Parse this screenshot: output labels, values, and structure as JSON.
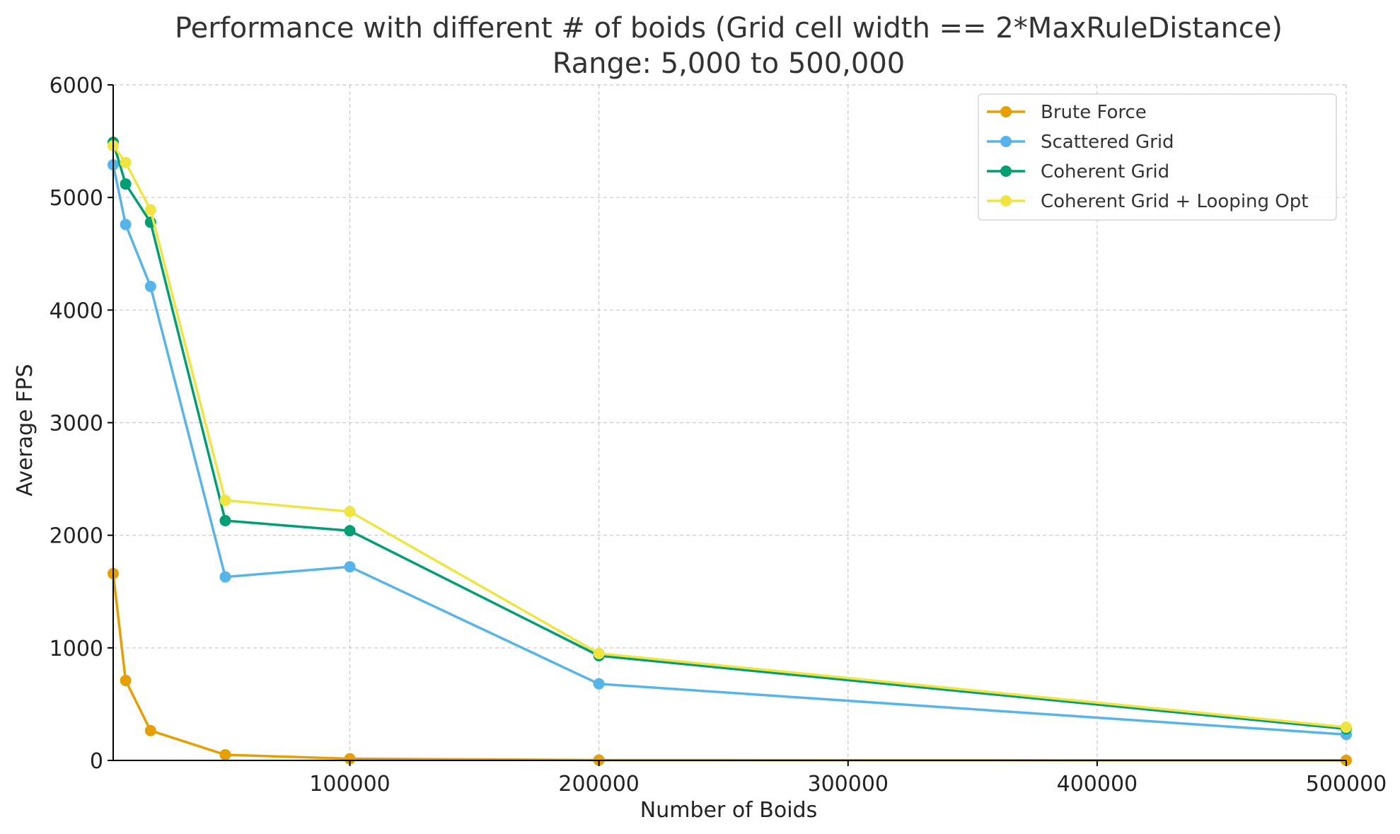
{
  "chart_data": {
    "type": "line",
    "title": "Performance with different # of boids (Grid cell width == 2*MaxRuleDistance)",
    "subtitle": "Range: 5,000 to 500,000",
    "xlabel": "Number of Boids",
    "ylabel": "Average FPS",
    "xlim": [
      5000,
      500000
    ],
    "ylim": [
      0,
      6000
    ],
    "xticks": [
      100000,
      200000,
      300000,
      400000,
      500000
    ],
    "xtick_labels": [
      "100000",
      "200000",
      "300000",
      "400000",
      "500000"
    ],
    "yticks": [
      0,
      1000,
      2000,
      3000,
      4000,
      5000,
      6000
    ],
    "ytick_labels": [
      "0",
      "1000",
      "2000",
      "3000",
      "4000",
      "5000",
      "6000"
    ],
    "grid": true,
    "legend_position": "top-right",
    "x": [
      5000,
      10000,
      20000,
      50000,
      100000,
      200000,
      500000
    ],
    "series": [
      {
        "name": "Brute Force",
        "color": "#E69F00",
        "values": [
          1660,
          710,
          265,
          50,
          15,
          3,
          1
        ]
      },
      {
        "name": "Scattered Grid",
        "color": "#56B4E9",
        "values": [
          5290,
          4760,
          4210,
          1630,
          1720,
          680,
          230
        ]
      },
      {
        "name": "Coherent Grid",
        "color": "#009E73",
        "values": [
          5490,
          5120,
          4780,
          2130,
          2040,
          930,
          280
        ]
      },
      {
        "name": "Coherent Grid + Looping Opt",
        "color": "#F0E442",
        "values": [
          5460,
          5310,
          4890,
          2310,
          2210,
          950,
          295
        ]
      }
    ]
  }
}
